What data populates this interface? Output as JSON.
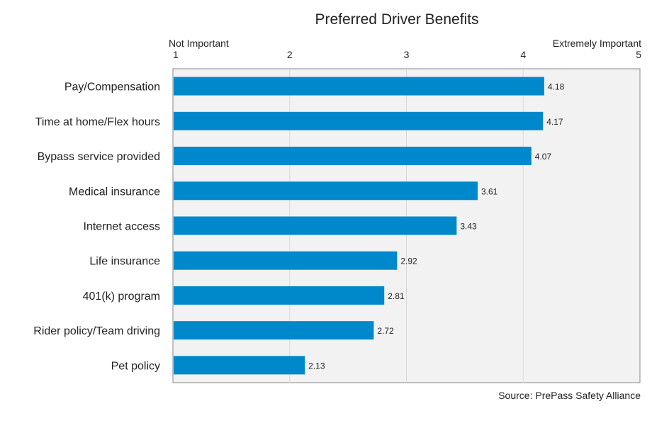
{
  "chart_data": {
    "type": "bar",
    "orientation": "horizontal",
    "title": "Preferred Driver Benefits",
    "categories": [
      "Pay/Compensation",
      "Time at home/Flex hours",
      "Bypass service provided",
      "Medical insurance",
      "Internet access",
      "Life insurance",
      "401(k) program",
      "Rider policy/Team driving",
      "Pet policy"
    ],
    "values": [
      4.18,
      4.17,
      4.07,
      3.61,
      3.43,
      2.92,
      2.81,
      2.72,
      2.13
    ],
    "data_labels": [
      "4.18",
      "4.17",
      "4.07",
      "3.61",
      "3.43",
      "2.92",
      "2.81",
      "2.72",
      "2.13"
    ],
    "xlim": [
      1,
      5
    ],
    "x_ticks": [
      "1",
      "2",
      "3",
      "4",
      "5"
    ],
    "x_axis_position": "top",
    "axis_end_labels": {
      "left": "Not Important",
      "right": "Extremely Important"
    },
    "source": "Source: PrePass Safety Alliance",
    "grid": true,
    "legend": "none",
    "colors": {
      "bar": "#0088CC",
      "plot_background": "#F2F2F2",
      "grid": "#D9D9D9"
    }
  }
}
